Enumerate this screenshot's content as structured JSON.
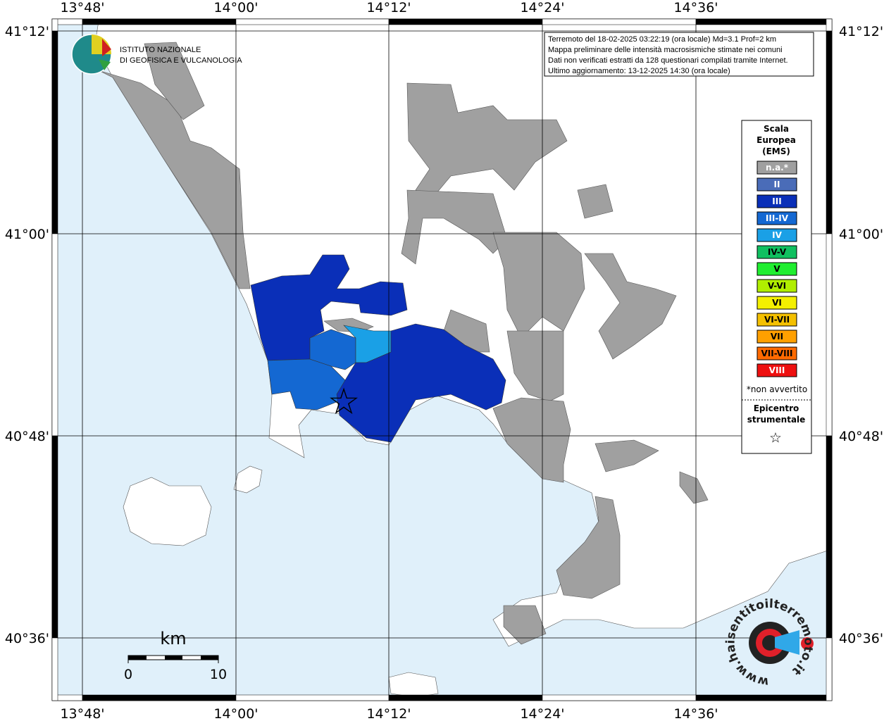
{
  "map": {
    "lon_ticks": [
      "13°48'",
      "14°00'",
      "14°12'",
      "14°24'",
      "14°36'"
    ],
    "lat_ticks": [
      "41°12'",
      "41°00'",
      "40°48'",
      "40°36'"
    ],
    "sea_color": "#e0f0fa",
    "land_color": "#ffffff",
    "na_color": "#a0a0a0",
    "epicenter_symbol": "☆"
  },
  "logo": {
    "line1": "ISTITUTO NAZIONALE",
    "line2": "DI GEOFISICA E VULCANOLOGIA"
  },
  "info": [
    "Terremoto del 18-02-2025 03:22:19 (ora locale) Md=3.1 Prof=2 km",
    "Mappa preliminare delle intensità macrosismiche stimate nei comuni",
    "Dati non verificati estratti da 128 questionari compilati tramite Internet.",
    "Ultimo aggiornamento: 13-12-2025 14:30 (ora locale)"
  ],
  "legend": {
    "title": [
      "Scala",
      "Europea",
      "(EMS)"
    ],
    "items": [
      {
        "label": "n.a.*",
        "color": "#a0a0a0",
        "text_color": "#ffffff"
      },
      {
        "label": "II",
        "color": "#4a6cb8",
        "text_color": "#ffffff"
      },
      {
        "label": "III",
        "color": "#0a2fb8",
        "text_color": "#ffffff"
      },
      {
        "label": "III-IV",
        "color": "#1468d2",
        "text_color": "#ffffff"
      },
      {
        "label": "IV",
        "color": "#1aa0e6",
        "text_color": "#ffffff"
      },
      {
        "label": "IV-V",
        "color": "#10c060",
        "text_color": "#000000"
      },
      {
        "label": "V",
        "color": "#20ee30",
        "text_color": "#000000"
      },
      {
        "label": "V-VI",
        "color": "#b0ee00",
        "text_color": "#000000"
      },
      {
        "label": "VI",
        "color": "#f4f000",
        "text_color": "#000000"
      },
      {
        "label": "VI-VII",
        "color": "#f4c000",
        "text_color": "#000000"
      },
      {
        "label": "VII",
        "color": "#ffa000",
        "text_color": "#000000"
      },
      {
        "label": "VII-VIII",
        "color": "#ff6a00",
        "text_color": "#000000"
      },
      {
        "label": "VIII",
        "color": "#ee1010",
        "text_color": "#ffffff"
      }
    ],
    "note": "*non avvertito",
    "epicenter_title": [
      "Epicentro",
      "strumentale"
    ]
  },
  "scale_bar": {
    "unit": "km",
    "min": "0",
    "max": "10"
  },
  "watermark": "www.haisentitoilterremoto.it"
}
